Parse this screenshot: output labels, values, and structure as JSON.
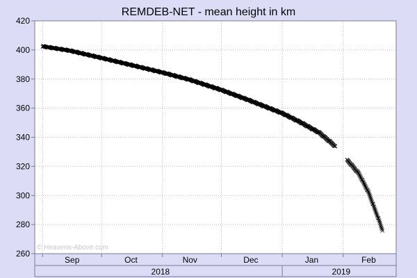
{
  "chart_data": {
    "type": "scatter",
    "title": "REMDEB-NET - mean height in km",
    "watermark": "© Heavens-Above.com",
    "xlabel": "",
    "ylabel": "",
    "ylim": [
      260,
      420
    ],
    "yticks": [
      260,
      280,
      300,
      320,
      340,
      360,
      380,
      400,
      420
    ],
    "xlim": [
      "2018-08-28",
      "2019-02-28"
    ],
    "month_ticks": [
      "2018-09-01",
      "2018-10-01",
      "2018-11-01",
      "2018-12-01",
      "2019-01-01",
      "2019-02-01"
    ],
    "month_labels": [
      {
        "label": "Sep",
        "date": "2018-09-16"
      },
      {
        "label": "Oct",
        "date": "2018-10-16"
      },
      {
        "label": "Nov",
        "date": "2018-11-15"
      },
      {
        "label": "Dec",
        "date": "2018-12-16"
      },
      {
        "label": "Jan",
        "date": "2019-01-16"
      },
      {
        "label": "Feb",
        "date": "2019-02-14"
      }
    ],
    "year_labels": [
      {
        "label": "2018",
        "date": "2018-10-31"
      },
      {
        "label": "2019",
        "date": "2019-01-31"
      }
    ],
    "year_divider": "2019-01-01",
    "grid": true,
    "marker": "x",
    "series": [
      {
        "color": "#000000",
        "points": [
          {
            "x": "2018-09-01",
            "y": 402.5
          },
          {
            "x": "2018-09-15",
            "y": 399.5
          },
          {
            "x": "2018-10-01",
            "y": 394.5
          },
          {
            "x": "2018-10-15",
            "y": 390.0
          },
          {
            "x": "2018-11-01",
            "y": 384.5
          },
          {
            "x": "2018-11-15",
            "y": 379.5
          },
          {
            "x": "2018-12-01",
            "y": 372.5
          },
          {
            "x": "2018-12-15",
            "y": 365.5
          },
          {
            "x": "2019-01-01",
            "y": 356.5
          },
          {
            "x": "2019-01-10",
            "y": 350.5
          },
          {
            "x": "2019-01-20",
            "y": 343.0
          },
          {
            "x": "2019-01-27",
            "y": 335.0
          },
          {
            "x": "2019-02-04",
            "y": 323.0
          },
          {
            "x": "2019-02-09",
            "y": 315.0
          },
          {
            "x": "2019-02-14",
            "y": 302.0
          },
          {
            "x": "2019-02-17",
            "y": 291.0
          },
          {
            "x": "2019-02-19",
            "y": 284.0
          },
          {
            "x": "2019-02-21",
            "y": 276.0
          }
        ],
        "gaps": [
          [
            "2019-01-28",
            "2019-02-03"
          ]
        ]
      }
    ]
  },
  "colors": {
    "background_outer": "#dcdcf7",
    "plot_background": "#ffffff",
    "grid": "#bdbdbd",
    "axis": "#7a7a99",
    "text": "#000000",
    "watermark": "#c8c8c8"
  }
}
